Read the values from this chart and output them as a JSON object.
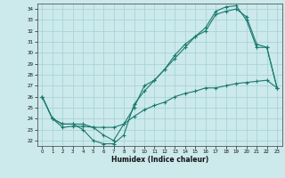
{
  "xlabel": "Humidex (Indice chaleur)",
  "bg_color": "#cce9ec",
  "grid_color": "#a8d5d8",
  "line_color": "#1a7a6e",
  "xlim": [
    -0.5,
    23.5
  ],
  "ylim": [
    21.5,
    34.5
  ],
  "xticks": [
    0,
    1,
    2,
    3,
    4,
    5,
    6,
    7,
    8,
    9,
    10,
    11,
    12,
    13,
    14,
    15,
    16,
    17,
    18,
    19,
    20,
    21,
    22,
    23
  ],
  "yticks": [
    22,
    23,
    24,
    25,
    26,
    27,
    28,
    29,
    30,
    31,
    32,
    33,
    34
  ],
  "line1_x": [
    0,
    1,
    2,
    3,
    4,
    5,
    6,
    7,
    8,
    9,
    10,
    11,
    12,
    13,
    14,
    15,
    16,
    17,
    18,
    19,
    20,
    21,
    22,
    23
  ],
  "line1_y": [
    26.0,
    24.0,
    23.5,
    23.5,
    23.0,
    22.0,
    21.7,
    21.7,
    22.5,
    25.3,
    26.5,
    27.5,
    28.5,
    29.5,
    30.5,
    31.5,
    32.0,
    33.5,
    33.8,
    34.0,
    33.3,
    30.8,
    30.5,
    26.8
  ],
  "line2_x": [
    0,
    1,
    2,
    3,
    4,
    5,
    6,
    7,
    8,
    9,
    10,
    11,
    12,
    13,
    14,
    15,
    16,
    17,
    18,
    19,
    20,
    21,
    22,
    23
  ],
  "line2_y": [
    26.0,
    24.0,
    23.2,
    23.3,
    23.3,
    23.2,
    22.5,
    22.0,
    23.5,
    25.0,
    27.0,
    27.5,
    28.5,
    29.8,
    30.8,
    31.5,
    32.3,
    33.8,
    34.2,
    34.3,
    33.0,
    30.5,
    30.5,
    26.8
  ],
  "line3_x": [
    0,
    1,
    2,
    3,
    4,
    5,
    6,
    7,
    8,
    9,
    10,
    11,
    12,
    13,
    14,
    15,
    16,
    17,
    18,
    19,
    20,
    21,
    22,
    23
  ],
  "line3_y": [
    26.0,
    24.0,
    23.5,
    23.5,
    23.5,
    23.2,
    23.2,
    23.2,
    23.5,
    24.2,
    24.8,
    25.2,
    25.5,
    26.0,
    26.3,
    26.5,
    26.8,
    26.8,
    27.0,
    27.2,
    27.3,
    27.4,
    27.5,
    26.8
  ]
}
